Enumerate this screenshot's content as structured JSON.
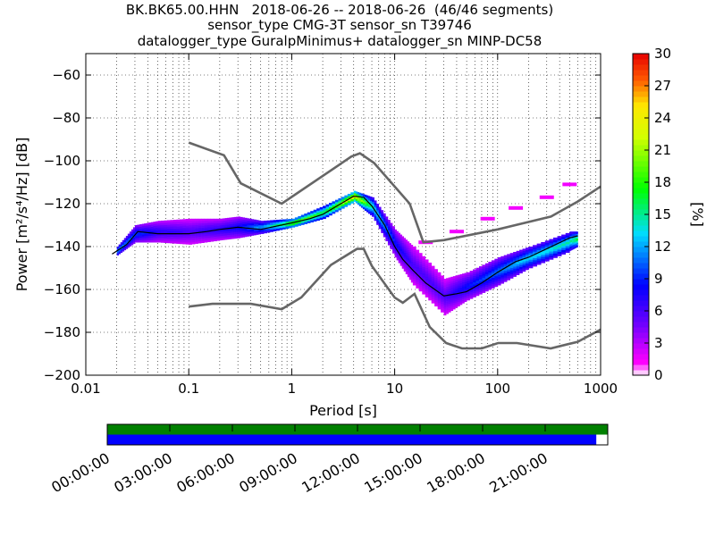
{
  "title_lines": [
    "BK.BK65.00.HHN   2018-06-26 -- 2018-06-26  (46/46 segments)",
    "sensor_type CMG-3T sensor_sn T39746",
    "datalogger_type GuralpMinimus+ datalogger_sn MINP-DC58"
  ],
  "chart_data": [
    {
      "type": "heatmap",
      "title": "BK.BK65.00.HHN   2018-06-26 -- 2018-06-26  (46/46 segments)",
      "xlabel": "Period [s]",
      "ylabel": "Power [m²/s⁴/Hz] [dB]",
      "xscale": "log",
      "xlim": [
        0.01,
        1000
      ],
      "ylim": [
        -200,
        -50
      ],
      "xticks": [
        0.01,
        0.1,
        1,
        10,
        100,
        1000
      ],
      "xtick_labels": [
        "0.01",
        "0.1",
        "1",
        "10",
        "100",
        "1000"
      ],
      "yticks": [
        -200,
        -180,
        -160,
        -140,
        -120,
        -100,
        -80,
        -60
      ],
      "ytick_labels": [
        "−200",
        "−180",
        "−160",
        "−140",
        "−120",
        "−100",
        "−80",
        "−60"
      ],
      "grid": true,
      "colorbar": {
        "label": "[%]",
        "range": [
          0,
          30
        ],
        "ticks": [
          0,
          3,
          6,
          9,
          12,
          15,
          18,
          21,
          24,
          27,
          30
        ]
      },
      "noise_models": [
        {
          "name": "NHNM",
          "x": [
            0.1,
            0.22,
            0.32,
            0.8,
            3.8,
            4.6,
            6.3,
            14,
            19,
            30,
            100,
            330,
            600,
            1000
          ],
          "y": [
            -91.5,
            -97.4,
            -110.5,
            -120,
            -98,
            -96.5,
            -101,
            -120,
            -138,
            -137,
            -132,
            -126,
            -119,
            -112
          ]
        },
        {
          "name": "NLNM",
          "x": [
            0.1,
            0.17,
            0.4,
            0.8,
            1.24,
            2.4,
            4.3,
            5,
            6,
            10,
            12,
            15.6,
            21.9,
            31.6,
            45,
            70,
            101,
            154,
            328,
            600,
            1000
          ],
          "y": [
            -168,
            -166.7,
            -166.7,
            -169.2,
            -163.7,
            -148.6,
            -141.1,
            -141.1,
            -149,
            -163.8,
            -166.2,
            -162.1,
            -177.5,
            -185,
            -187.5,
            -187.5,
            -185,
            -185,
            -187.5,
            -184.4,
            -178.7
          ]
        }
      ],
      "mode_line": {
        "x": [
          0.018,
          0.025,
          0.032,
          0.05,
          0.1,
          0.15,
          0.2,
          0.3,
          0.5,
          1,
          1.5,
          2,
          3,
          4,
          5,
          6,
          8,
          10,
          12,
          15,
          20,
          30,
          40,
          50,
          70,
          100,
          150,
          200,
          300,
          500,
          600
        ],
        "y": [
          -143.5,
          -139,
          -133,
          -134,
          -134,
          -133,
          -132,
          -131,
          -132,
          -129,
          -127,
          -125,
          -120,
          -116.5,
          -117,
          -121,
          -130,
          -140,
          -146,
          -151,
          -157,
          -163,
          -162,
          -161,
          -157,
          -152,
          -147,
          -145,
          -141,
          -136,
          -135
        ]
      },
      "psd_distribution": [
        {
          "x": 0.02,
          "ylo": -144,
          "yhi": -140,
          "pct": 10
        },
        {
          "x": 0.03,
          "ylo": -138,
          "yhi": -130,
          "pct": 8
        },
        {
          "x": 0.05,
          "ylo": -138,
          "yhi": -128,
          "pct": 6
        },
        {
          "x": 0.1,
          "ylo": -139,
          "yhi": -127,
          "pct": 5
        },
        {
          "x": 0.2,
          "ylo": -137,
          "yhi": -127,
          "pct": 6
        },
        {
          "x": 0.3,
          "ylo": -136,
          "yhi": -126,
          "pct": 7
        },
        {
          "x": 0.5,
          "ylo": -134,
          "yhi": -128,
          "pct": 10
        },
        {
          "x": 1,
          "ylo": -131,
          "yhi": -127,
          "pct": 16
        },
        {
          "x": 2,
          "ylo": -127,
          "yhi": -121,
          "pct": 14
        },
        {
          "x": 4,
          "ylo": -119,
          "yhi": -114,
          "pct": 20
        },
        {
          "x": 6,
          "ylo": -126,
          "yhi": -117,
          "pct": 12
        },
        {
          "x": 10,
          "ylo": -145,
          "yhi": -132,
          "pct": 7
        },
        {
          "x": 15,
          "ylo": -158,
          "yhi": -140,
          "pct": 5
        },
        {
          "x": 30,
          "ylo": -172,
          "yhi": -155,
          "pct": 5
        },
        {
          "x": 50,
          "ylo": -165,
          "yhi": -152,
          "pct": 7
        },
        {
          "x": 100,
          "ylo": -158,
          "yhi": -145,
          "pct": 9
        },
        {
          "x": 200,
          "ylo": -150,
          "yhi": -140,
          "pct": 11
        },
        {
          "x": 500,
          "ylo": -142,
          "yhi": -133,
          "pct": 12
        },
        {
          "x": 600,
          "ylo": -140,
          "yhi": -133,
          "pct": 14
        }
      ],
      "sparse_branch": [
        {
          "x": 20,
          "y": -138
        },
        {
          "x": 40,
          "y": -133
        },
        {
          "x": 80,
          "y": -127
        },
        {
          "x": 150,
          "y": -122
        },
        {
          "x": 300,
          "y": -117
        },
        {
          "x": 500,
          "y": -111
        }
      ]
    },
    {
      "type": "bar",
      "title": "",
      "xlabel": "",
      "ylabel": "",
      "xlim_hours": [
        0,
        24
      ],
      "xtick_labels": [
        "00:00:00",
        "03:00:00",
        "06:00:00",
        "09:00:00",
        "12:00:00",
        "15:00:00",
        "18:00:00",
        "21:00:00"
      ],
      "series": [
        {
          "color": "#008000",
          "segments": [
            [
              0,
              24
            ]
          ]
        },
        {
          "color": "#0000ff",
          "segments": [
            [
              0,
              23.45
            ]
          ]
        }
      ]
    }
  ]
}
